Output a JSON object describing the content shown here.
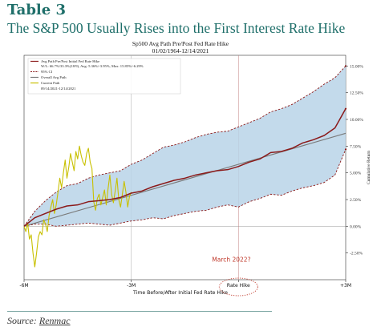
{
  "page": {
    "title": "Table 3",
    "subtitle": "The S&P 500 Usually Rises into the First Interest Rate Hike",
    "source_prefix": "Source:",
    "source_name": "Renmac"
  },
  "chart_data": {
    "type": "line",
    "title": "Sp500 Avg Path Pre/Post Fed Rate Hike",
    "subtitle": "01/02/1964-12/14/2021",
    "xlabel": "Time Before/After Initial Fed Rate Hike",
    "ylabel": "Cumulative Return",
    "x_unit": "months relative to first hike",
    "xlim": [
      -6,
      3
    ],
    "ylim": [
      -5,
      16
    ],
    "x_ticks": [
      {
        "value": -6,
        "label": "-6M"
      },
      {
        "value": -3,
        "label": "-3M"
      },
      {
        "value": 0,
        "label": "Rate Hike"
      },
      {
        "value": 3,
        "label": "+3M"
      }
    ],
    "y_ticks": [
      {
        "value": -2.5,
        "label": "-2.50%"
      },
      {
        "value": 0,
        "label": "0.00%"
      },
      {
        "value": 2.5,
        "label": "2.50%"
      },
      {
        "value": 5,
        "label": "5.00%"
      },
      {
        "value": 7.5,
        "label": "7.50%"
      },
      {
        "value": 10,
        "label": "10.00%"
      },
      {
        "value": 12.5,
        "label": "12.50%"
      },
      {
        "value": 15,
        "label": "15.00%"
      }
    ],
    "y_axis_side": "right",
    "legend_position": "top-left",
    "legend": [
      {
        "label": "Avg Path Pre/Post Initial Fed Rate Hike",
        "style": "solid",
        "color": "#8b1a1a"
      },
      {
        "label": "W/L: 66.7%/33.3%(18/9), Avg: 5.36%/-3.95%, Max: 15.85%/-6.29%",
        "style": "text",
        "color": "#222222"
      },
      {
        "label": "95% CI",
        "style": "dashed",
        "color": "#8b1a1a"
      },
      {
        "label": "Overall Avg Path",
        "style": "solid",
        "color": "#7a7a7a"
      },
      {
        "label": "Current Path",
        "style": "solid",
        "color": "#c8c000"
      },
      {
        "label": "09/14/2021-12/14/2021",
        "style": "text",
        "color": "#222222"
      }
    ],
    "annotations": [
      {
        "text": "March 2022?",
        "x": -0.2,
        "y": -3.3,
        "color": "#c0392b"
      }
    ],
    "series": [
      {
        "name": "Avg Path Pre/Post Initial Fed Rate Hike",
        "color": "#8b1a1a",
        "x": [
          -6,
          -5.7,
          -5.4,
          -5.1,
          -4.8,
          -4.5,
          -4.2,
          -3.9,
          -3.6,
          -3.3,
          -3.0,
          -2.7,
          -2.4,
          -2.1,
          -1.8,
          -1.5,
          -1.2,
          -0.9,
          -0.6,
          -0.3,
          0,
          0.3,
          0.6,
          0.9,
          1.2,
          1.5,
          1.8,
          2.1,
          2.4,
          2.7,
          3.0
        ],
        "y": [
          0,
          0.8,
          1.2,
          1.6,
          1.9,
          2.0,
          2.3,
          2.4,
          2.5,
          2.7,
          3.1,
          3.3,
          3.7,
          4.0,
          4.3,
          4.5,
          4.8,
          5.0,
          5.2,
          5.3,
          5.6,
          6.0,
          6.3,
          6.9,
          7.0,
          7.3,
          7.8,
          8.1,
          8.5,
          9.2,
          11.0
        ]
      },
      {
        "name": "95% CI upper",
        "color": "#8b1a1a",
        "x": [
          -6,
          -5.7,
          -5.4,
          -5.1,
          -4.8,
          -4.5,
          -4.2,
          -3.9,
          -3.6,
          -3.3,
          -3.0,
          -2.7,
          -2.4,
          -2.1,
          -1.8,
          -1.5,
          -1.2,
          -0.9,
          -0.6,
          -0.3,
          0,
          0.3,
          0.6,
          0.9,
          1.2,
          1.5,
          1.8,
          2.1,
          2.4,
          2.7,
          3.0
        ],
        "y": [
          0,
          1.4,
          2.4,
          3.2,
          3.8,
          4.0,
          4.5,
          4.8,
          5.0,
          5.2,
          5.8,
          6.2,
          6.8,
          7.4,
          7.6,
          7.9,
          8.3,
          8.6,
          8.8,
          8.9,
          9.3,
          9.7,
          10.1,
          10.7,
          11.0,
          11.4,
          12.0,
          12.6,
          13.3,
          13.9,
          15.0
        ]
      },
      {
        "name": "95% CI lower",
        "color": "#8b1a1a",
        "x": [
          -6,
          -5.7,
          -5.4,
          -5.1,
          -4.8,
          -4.5,
          -4.2,
          -3.9,
          -3.6,
          -3.3,
          -3.0,
          -2.7,
          -2.4,
          -2.1,
          -1.8,
          -1.5,
          -1.2,
          -0.9,
          -0.6,
          -0.3,
          0,
          0.3,
          0.6,
          0.9,
          1.2,
          1.5,
          1.8,
          2.1,
          2.4,
          2.7,
          3.0
        ],
        "y": [
          0,
          0.2,
          0.2,
          0.0,
          0.1,
          0.2,
          0.3,
          0.2,
          0.1,
          0.3,
          0.5,
          0.6,
          0.8,
          0.7,
          1.0,
          1.2,
          1.4,
          1.5,
          1.8,
          2.0,
          1.8,
          2.3,
          2.6,
          3.0,
          2.9,
          3.3,
          3.6,
          3.8,
          4.1,
          4.8,
          7.2
        ]
      },
      {
        "name": "Overall Avg Path",
        "color": "#7a7a7a",
        "x": [
          -6,
          3
        ],
        "y": [
          0,
          8.7
        ]
      },
      {
        "name": "Current Path",
        "color": "#c8c000",
        "x": [
          -6.0,
          -5.95,
          -5.9,
          -5.85,
          -5.8,
          -5.75,
          -5.7,
          -5.65,
          -5.6,
          -5.55,
          -5.5,
          -5.45,
          -5.4,
          -5.35,
          -5.3,
          -5.25,
          -5.2,
          -5.15,
          -5.1,
          -5.05,
          -5.0,
          -4.95,
          -4.9,
          -4.85,
          -4.8,
          -4.75,
          -4.7,
          -4.65,
          -4.6,
          -4.55,
          -4.5,
          -4.45,
          -4.4,
          -4.35,
          -4.3,
          -4.25,
          -4.2,
          -4.15,
          -4.1,
          -4.05,
          -4.0,
          -3.95,
          -3.9,
          -3.85,
          -3.8,
          -3.75,
          -3.7,
          -3.65,
          -3.6,
          -3.55,
          -3.5,
          -3.45,
          -3.4,
          -3.35,
          -3.3,
          -3.25,
          -3.2,
          -3.15,
          -3.1,
          -3.05,
          -3.0
        ],
        "y": [
          0.0,
          -0.5,
          0.3,
          -1.2,
          -0.8,
          -2.5,
          -3.8,
          -2.5,
          -1.0,
          -0.5,
          -0.8,
          0.6,
          0.2,
          -0.5,
          1.0,
          1.8,
          2.5,
          1.2,
          2.0,
          3.2,
          4.5,
          3.6,
          5.0,
          6.2,
          4.5,
          5.5,
          6.8,
          6.0,
          5.2,
          7.0,
          6.3,
          7.5,
          6.6,
          6.0,
          5.7,
          6.8,
          7.3,
          6.0,
          5.4,
          2.3,
          1.5,
          2.6,
          3.0,
          2.0,
          2.7,
          3.4,
          2.0,
          3.5,
          4.8,
          3.0,
          2.2,
          3.3,
          4.5,
          2.5,
          1.8,
          3.0,
          4.2,
          3.2,
          1.8,
          2.8,
          3.2
        ]
      }
    ]
  }
}
